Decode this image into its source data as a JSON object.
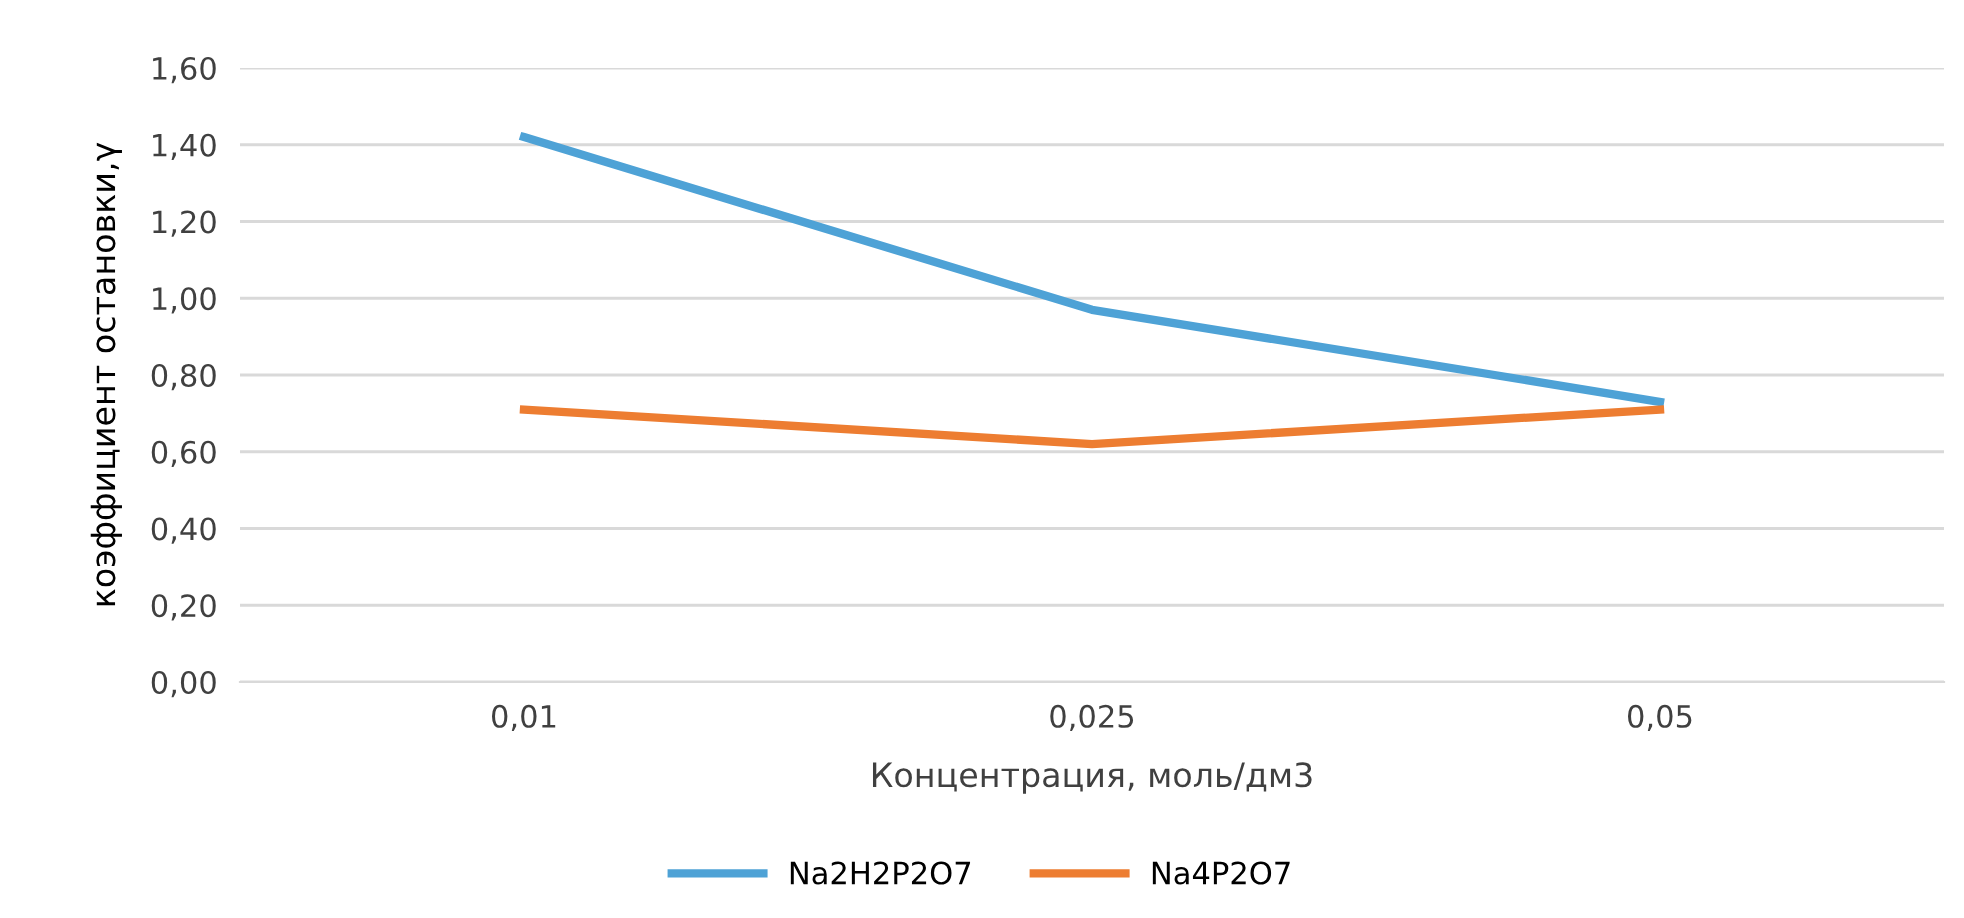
{
  "chart_data": {
    "type": "line",
    "categories": [
      "0,01",
      "0,025",
      "0,05"
    ],
    "xlabel": "Концентрация, моль/дм3",
    "ylabel": "коэффициент остановки,γ",
    "series": [
      {
        "name": "Na2H2P2O7",
        "color": "#4ea2d6",
        "values": [
          1.42,
          0.97,
          0.73
        ]
      },
      {
        "name": "Na4P2O7",
        "color": "#ed7d31",
        "values": [
          0.71,
          0.62,
          0.71
        ]
      }
    ],
    "ylim": [
      0,
      1.6
    ],
    "yticks": [
      {
        "value": 0,
        "label": "0,00"
      },
      {
        "value": 0.2,
        "label": "0,20"
      },
      {
        "value": 0.4,
        "label": "0,40"
      },
      {
        "value": 0.6,
        "label": "0,60"
      },
      {
        "value": 0.8,
        "label": "0,80"
      },
      {
        "value": 1.0,
        "label": "1,00"
      },
      {
        "value": 1.2,
        "label": "1,20"
      },
      {
        "value": 1.4,
        "label": "1,40"
      },
      {
        "value": 1.6,
        "label": "1,60"
      }
    ],
    "grid": "y",
    "legend": "bottom",
    "marker": "none",
    "line_style": "solid"
  }
}
